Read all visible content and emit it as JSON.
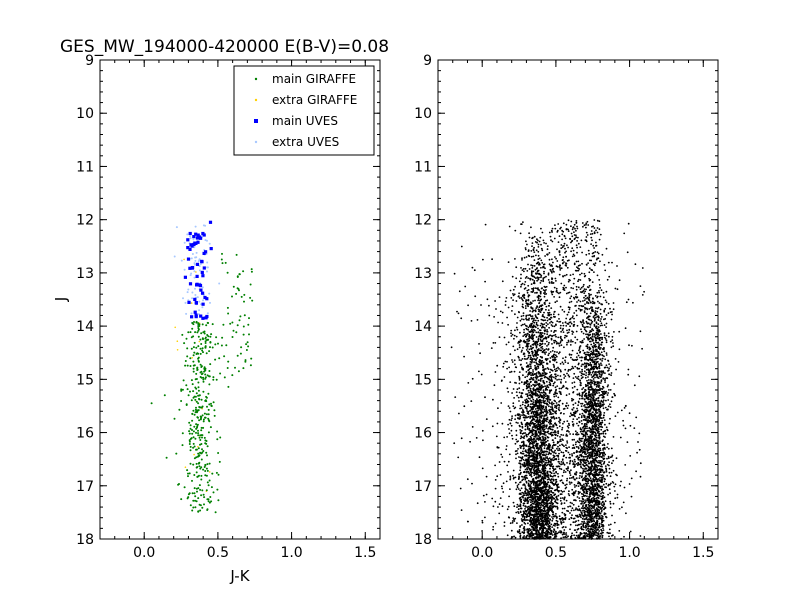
{
  "chart_data": [
    {
      "type": "scatter",
      "title": "GES_MW_194000-420000 E(B-V)=0.08",
      "xlabel": "J-K",
      "ylabel": "J",
      "xlim": [
        -0.3,
        1.6
      ],
      "ylim": [
        18,
        9
      ],
      "y_inverted": true,
      "x_ticks": [
        "0.0",
        "0.5",
        "1.0",
        "1.5"
      ],
      "y_ticks": [
        "9",
        "10",
        "11",
        "12",
        "13",
        "14",
        "15",
        "16",
        "17",
        "18"
      ],
      "grid": false,
      "legend_position": "top-right",
      "series": [
        {
          "name": "main GIRAFFE",
          "color": "#008000",
          "marker": "dot",
          "x_range": [
            0.05,
            0.75
          ],
          "y_range": [
            12.5,
            17.5
          ],
          "approx_count": 450
        },
        {
          "name": "extra GIRAFFE",
          "color": "#ffd000",
          "marker": "dot",
          "x_range": [
            0.2,
            0.5
          ],
          "y_range": [
            12.0,
            17.5
          ],
          "approx_count": 20
        },
        {
          "name": "main UVES",
          "color": "#0000ff",
          "marker": "square",
          "x_range": [
            0.25,
            0.47
          ],
          "y_range": [
            12.0,
            14.0
          ],
          "approx_count": 55
        },
        {
          "name": "extra UVES",
          "color": "#a8c8ff",
          "marker": "dot",
          "x_range": [
            0.25,
            0.47
          ],
          "y_range": [
            12.0,
            14.0
          ],
          "approx_count": 90
        }
      ]
    },
    {
      "type": "scatter",
      "title": "",
      "xlabel": "",
      "ylabel": "",
      "xlim": [
        -0.3,
        1.6
      ],
      "ylim": [
        18,
        9
      ],
      "y_inverted": true,
      "x_ticks": [
        "0.0",
        "0.5",
        "1.0",
        "1.5"
      ],
      "y_ticks": [
        "9",
        "10",
        "11",
        "12",
        "13",
        "14",
        "15",
        "16",
        "17",
        "18"
      ],
      "grid": false,
      "series": [
        {
          "color": "#000000",
          "marker": "dot",
          "x_range": [
            -0.2,
            1.1
          ],
          "y_range": [
            12.0,
            18.0
          ],
          "approx_count": 9000
        }
      ]
    }
  ]
}
